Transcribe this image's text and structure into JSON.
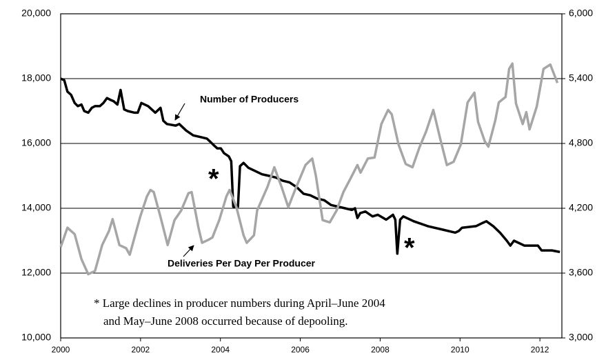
{
  "chart_data": {
    "type": "line",
    "xlim": [
      2000,
      2012.55
    ],
    "xticks": [
      2000,
      2002,
      2004,
      2006,
      2008,
      2010,
      2012
    ],
    "ylim": [
      10000,
      20000
    ],
    "yticks": [
      {
        "value": 10000,
        "label": "10,000"
      },
      {
        "value": 12000,
        "label": "12,000"
      },
      {
        "value": 14000,
        "label": "14,000"
      },
      {
        "value": 16000,
        "label": "16,000"
      },
      {
        "value": 18000,
        "label": "18,000"
      },
      {
        "value": 20000,
        "label": "20,000"
      }
    ],
    "y2lim": [
      3000,
      6000
    ],
    "y2ticks": [
      {
        "value": 3000,
        "label": "3,000"
      },
      {
        "value": 3600,
        "label": "3,600"
      },
      {
        "value": 4200,
        "label": "4,200"
      },
      {
        "value": 4800,
        "label": "4,800"
      },
      {
        "value": 5400,
        "label": "5,400"
      },
      {
        "value": 6000,
        "label": "6,000"
      }
    ],
    "grid": true,
    "series": [
      {
        "name": "Number of Producers",
        "color": "#000000",
        "axis": "y",
        "x": [
          2000.0,
          2000.09,
          2000.17,
          2000.26,
          2000.35,
          2000.43,
          2000.52,
          2000.59,
          2000.69,
          2000.78,
          2000.86,
          2000.98,
          2001.07,
          2001.16,
          2001.24,
          2001.33,
          2001.42,
          2001.5,
          2001.59,
          2001.68,
          2001.85,
          2001.93,
          2002.02,
          2002.19,
          2002.37,
          2002.5,
          2002.57,
          2002.66,
          2002.88,
          2002.97,
          2003.14,
          2003.32,
          2003.49,
          2003.66,
          2003.75,
          2003.83,
          2003.92,
          2004.01,
          2004.09,
          2004.21,
          2004.27,
          2004.32,
          2004.44,
          2004.49,
          2004.58,
          2004.7,
          2004.87,
          2005.04,
          2005.22,
          2005.39,
          2005.56,
          2005.73,
          2005.91,
          2006.08,
          2006.25,
          2006.42,
          2006.6,
          2006.77,
          2006.94,
          2007.12,
          2007.29,
          2007.37,
          2007.43,
          2007.5,
          2007.63,
          2007.81,
          2007.94,
          2008.15,
          2008.32,
          2008.38,
          2008.43,
          2008.5,
          2008.58,
          2008.84,
          2009.19,
          2009.53,
          2009.88,
          2009.97,
          2010.05,
          2010.4,
          2010.57,
          2010.66,
          2010.83,
          2011.0,
          2011.17,
          2011.26,
          2011.35,
          2011.61,
          2011.95,
          2012.04,
          2012.3,
          2012.5
        ],
        "values": [
          18000,
          17950,
          17600,
          17500,
          17250,
          17150,
          17200,
          17000,
          16950,
          17100,
          17150,
          17150,
          17250,
          17400,
          17350,
          17300,
          17200,
          17650,
          17050,
          17000,
          16950,
          16950,
          17250,
          17150,
          16950,
          17100,
          16700,
          16600,
          16550,
          16600,
          16400,
          16250,
          16200,
          16150,
          16050,
          15950,
          15850,
          15850,
          15700,
          15600,
          15450,
          14050,
          14050,
          15300,
          15400,
          15250,
          15150,
          15050,
          15000,
          14950,
          14850,
          14800,
          14650,
          14450,
          14400,
          14300,
          14250,
          14100,
          14050,
          14000,
          13950,
          14000,
          13700,
          13850,
          13900,
          13750,
          13800,
          13650,
          13800,
          13650,
          12600,
          13650,
          13750,
          13600,
          13450,
          13350,
          13250,
          13300,
          13400,
          13450,
          13550,
          13600,
          13450,
          13250,
          13000,
          12850,
          13000,
          12850,
          12850,
          12700,
          12700,
          12650
        ]
      },
      {
        "name": "Deliveries Per Day Per Producer",
        "color": "#a6a6a6",
        "axis": "y2",
        "x": [
          2000.0,
          2000.17,
          2000.35,
          2000.52,
          2000.69,
          2000.86,
          2001.04,
          2001.21,
          2001.3,
          2001.47,
          2001.64,
          2001.73,
          2001.99,
          2002.16,
          2002.25,
          2002.33,
          2002.5,
          2002.68,
          2002.85,
          2003.02,
          2003.2,
          2003.28,
          2003.45,
          2003.54,
          2003.71,
          2003.8,
          2003.97,
          2004.15,
          2004.23,
          2004.4,
          2004.58,
          2004.66,
          2004.84,
          2004.92,
          2005.18,
          2005.35,
          2005.53,
          2005.7,
          2005.87,
          2006.13,
          2006.3,
          2006.39,
          2006.56,
          2006.74,
          2006.91,
          2007.08,
          2007.25,
          2007.43,
          2007.51,
          2007.69,
          2007.86,
          2008.03,
          2008.2,
          2008.29,
          2008.46,
          2008.64,
          2008.81,
          2008.98,
          2009.15,
          2009.33,
          2009.5,
          2009.67,
          2009.84,
          2010.02,
          2010.19,
          2010.36,
          2010.45,
          2010.62,
          2010.71,
          2010.88,
          2010.97,
          2011.14,
          2011.23,
          2011.31,
          2011.4,
          2011.57,
          2011.66,
          2011.74,
          2011.92,
          2012.09,
          2012.26,
          2012.44
        ],
        "values": [
          3840,
          4020,
          3960,
          3730,
          3590,
          3620,
          3860,
          3990,
          4100,
          3860,
          3830,
          3770,
          4120,
          4310,
          4370,
          4350,
          4120,
          3860,
          4090,
          4180,
          4340,
          4350,
          4020,
          3880,
          3910,
          3930,
          4090,
          4310,
          4370,
          4210,
          3950,
          3880,
          3950,
          4180,
          4400,
          4580,
          4400,
          4210,
          4370,
          4600,
          4660,
          4500,
          4090,
          4070,
          4180,
          4350,
          4470,
          4600,
          4530,
          4660,
          4670,
          4980,
          5110,
          5070,
          4790,
          4610,
          4580,
          4760,
          4910,
          5110,
          4850,
          4600,
          4630,
          4790,
          5180,
          5270,
          5000,
          4820,
          4770,
          5010,
          5180,
          5230,
          5490,
          5540,
          5170,
          4980,
          5090,
          4930,
          5140,
          5490,
          5530,
          5360
        ]
      }
    ],
    "annotations": [
      "Number of Producers",
      "Deliveries Per Day Per Producer",
      "*",
      "*",
      "* Large declines in producer numbers during April–June 2004",
      "and May–June 2008 occurred because of depooling."
    ]
  }
}
